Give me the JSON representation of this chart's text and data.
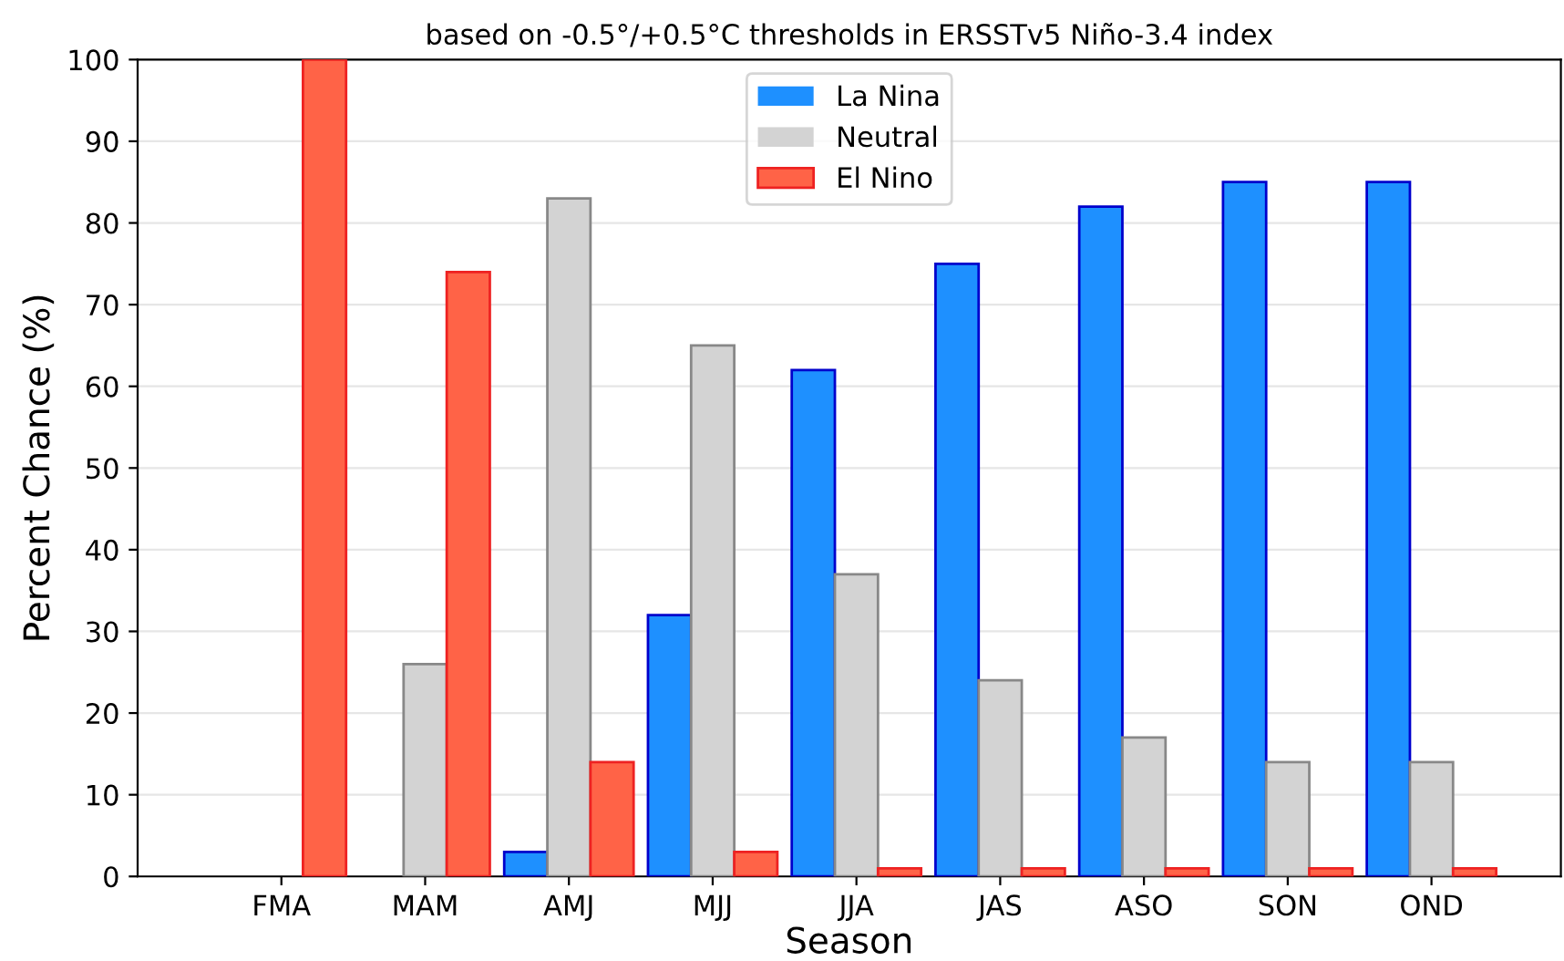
{
  "chart_data": {
    "type": "bar",
    "title": "based on -0.5°/+0.5°C thresholds in ERSSTv5 Niño-3.4 index",
    "xlabel": "Season",
    "ylabel": "Percent Chance (%)",
    "categories": [
      "FMA",
      "MAM",
      "AMJ",
      "MJJ",
      "JJA",
      "JAS",
      "ASO",
      "SON",
      "OND"
    ],
    "series": [
      {
        "name": "La Nina",
        "color": "#1e90ff",
        "values": [
          0,
          0,
          3,
          32,
          62,
          75,
          82,
          85,
          85
        ]
      },
      {
        "name": "Neutral",
        "color": "#d3d3d3",
        "values": [
          0,
          26,
          83,
          65,
          37,
          24,
          17,
          14,
          14
        ]
      },
      {
        "name": "El Nino",
        "color": "#ff6347",
        "values": [
          100,
          74,
          14,
          3,
          1,
          1,
          1,
          1,
          1
        ]
      }
    ],
    "ylim": [
      0,
      100
    ],
    "yticks": [
      0,
      10,
      20,
      30,
      40,
      50,
      60,
      70,
      80,
      90,
      100
    ],
    "grid": "y",
    "legend": "top"
  }
}
